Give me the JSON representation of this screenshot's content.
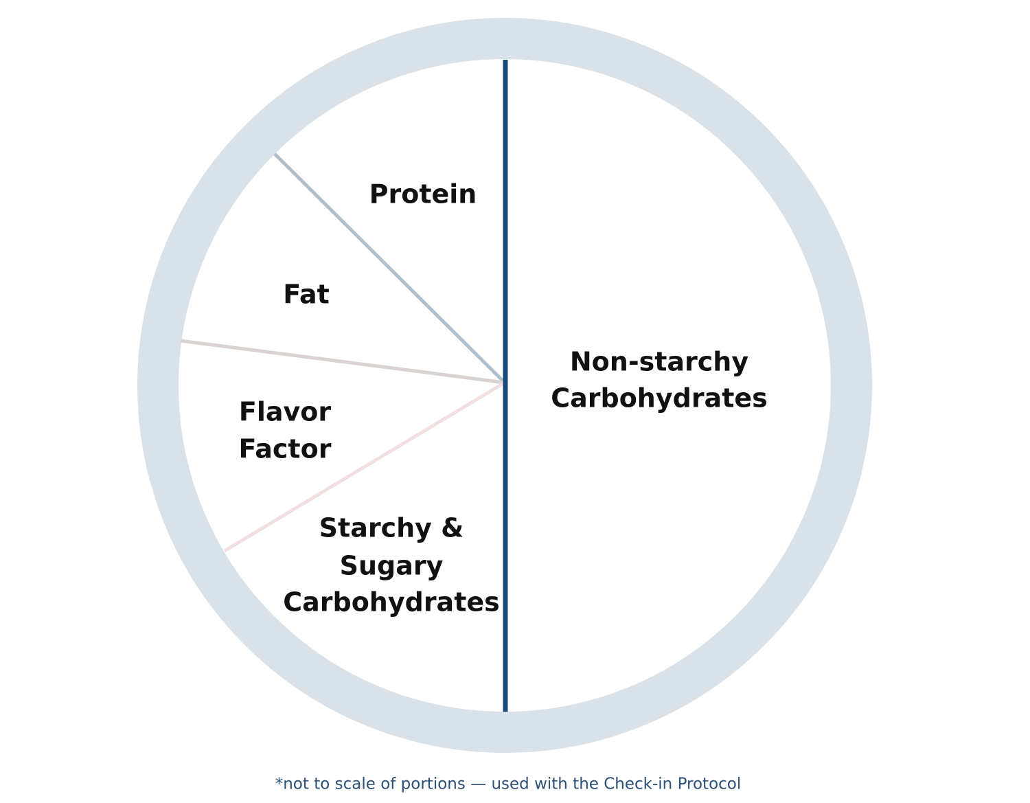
{
  "plate": {
    "sections": [
      {
        "lines": [
          "Protein"
        ]
      },
      {
        "lines": [
          "Fat"
        ]
      },
      {
        "lines": [
          "Flavor",
          "Factor"
        ]
      },
      {
        "lines": [
          "Starchy &",
          "Sugary",
          "Carbohydrates"
        ]
      },
      {
        "lines": [
          "Non-starchy",
          "Carbohydrates"
        ]
      }
    ],
    "footnote": "*not to scale of portions — used with the Check-in Protocol"
  }
}
